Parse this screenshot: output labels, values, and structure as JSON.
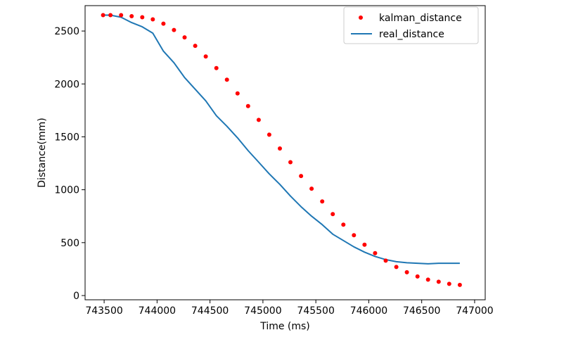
{
  "chart_data": {
    "type": "scatter+line",
    "xlabel": "Time (ms)",
    "ylabel": "Distance(mm)",
    "xlim": [
      743320,
      747100
    ],
    "ylim": [
      -40,
      2740
    ],
    "x_ticks": [
      743500,
      744000,
      744500,
      745000,
      745500,
      746000,
      746500,
      747000
    ],
    "y_ticks": [
      0,
      500,
      1000,
      1500,
      2000,
      2500
    ],
    "grid": false,
    "legend_position": "upper right",
    "series": [
      {
        "name": "kalman_distance",
        "kind": "scatter",
        "color": "#ff0000",
        "marker": "dot",
        "x": [
          743490,
          743560,
          743660,
          743760,
          743860,
          743960,
          744060,
          744160,
          744260,
          744360,
          744460,
          744560,
          744660,
          744760,
          744860,
          744960,
          745060,
          745160,
          745260,
          745360,
          745460,
          745560,
          745660,
          745760,
          745860,
          745960,
          746060,
          746160,
          746260,
          746360,
          746460,
          746560,
          746660,
          746760,
          746860
        ],
        "y": [
          2650,
          2650,
          2650,
          2640,
          2630,
          2610,
          2570,
          2510,
          2440,
          2360,
          2260,
          2150,
          2040,
          1910,
          1790,
          1660,
          1520,
          1390,
          1260,
          1130,
          1010,
          890,
          770,
          670,
          570,
          480,
          400,
          330,
          270,
          220,
          180,
          150,
          130,
          110,
          100
        ]
      },
      {
        "name": "real_distance",
        "kind": "line",
        "color": "#1f77b4",
        "x": [
          743490,
          743560,
          743660,
          743760,
          743860,
          743960,
          744060,
          744160,
          744260,
          744360,
          744460,
          744560,
          744660,
          744760,
          744860,
          744960,
          745060,
          745160,
          745260,
          745360,
          745460,
          745560,
          745660,
          745760,
          745860,
          745960,
          746060,
          746160,
          746260,
          746360,
          746460,
          746560,
          746660,
          746760,
          746860
        ],
        "y": [
          2650,
          2650,
          2630,
          2580,
          2540,
          2480,
          2310,
          2200,
          2060,
          1950,
          1840,
          1700,
          1600,
          1490,
          1370,
          1260,
          1150,
          1050,
          940,
          840,
          750,
          670,
          580,
          520,
          460,
          410,
          370,
          340,
          320,
          310,
          305,
          300,
          305,
          305,
          305
        ]
      }
    ]
  }
}
